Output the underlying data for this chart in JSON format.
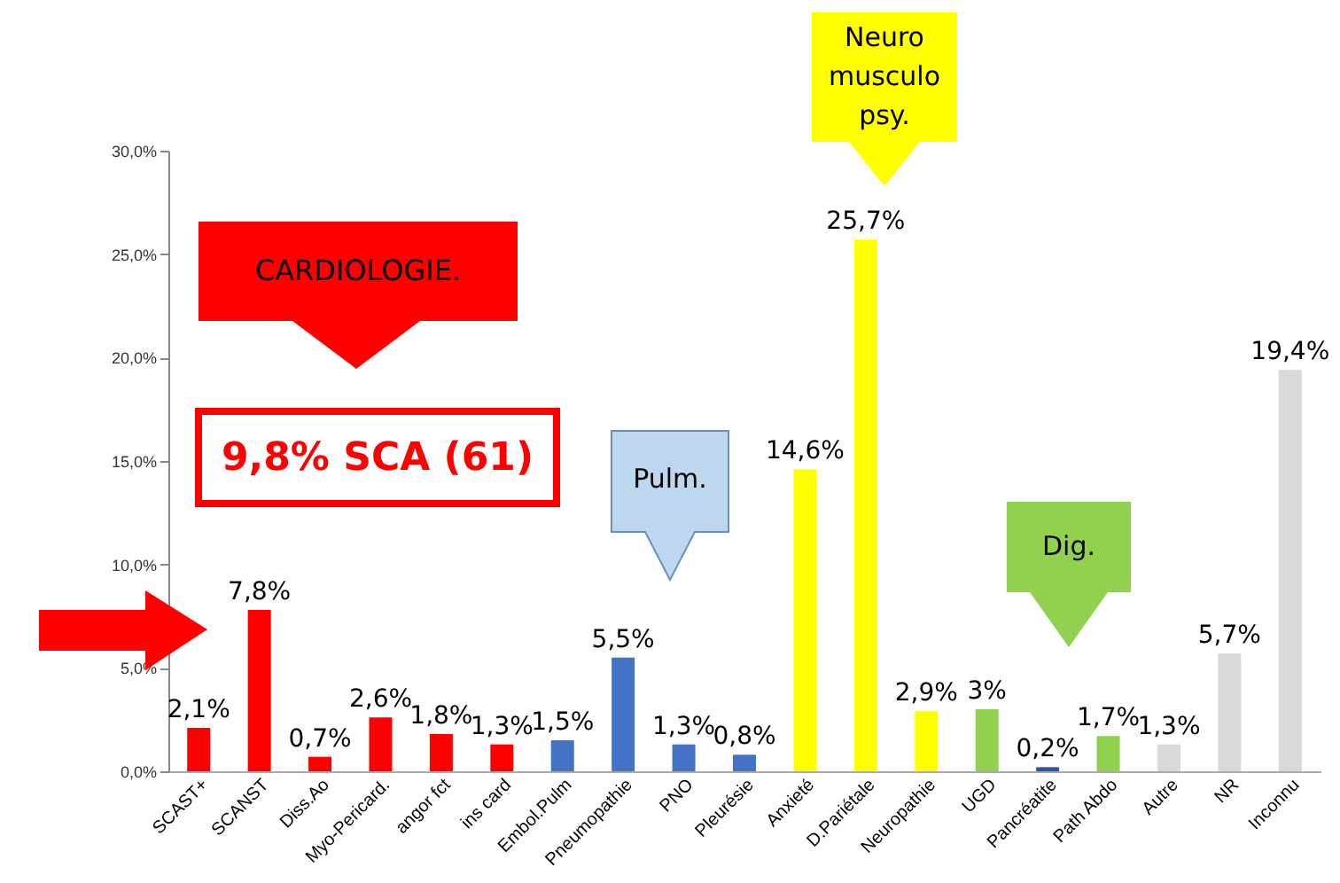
{
  "chart_data": {
    "type": "bar",
    "categories": [
      "SCAST+",
      "SCANST",
      "Diss.Ao",
      "Myo-Pericard.",
      "angor fct",
      "ins card",
      "Embol.Pulm",
      "Pneumopathie",
      "PNO",
      "Pleurésie",
      "Anxieté",
      "D.Pariétale",
      "Neuropathie",
      "UGD",
      "Pancréatite",
      "Path Abdo",
      "Autre",
      "NR",
      "Inconnu"
    ],
    "values": [
      2.1,
      7.8,
      0.7,
      2.6,
      1.8,
      1.3,
      1.5,
      5.5,
      1.3,
      0.8,
      14.6,
      25.7,
      2.9,
      3,
      0.2,
      1.7,
      1.3,
      5.7,
      19.4
    ],
    "colors": [
      "#ff0000",
      "#ff0000",
      "#ff0000",
      "#ff0000",
      "#ff0000",
      "#ff0000",
      "#4472c4",
      "#4472c4",
      "#4472c4",
      "#4472c4",
      "#ffff00",
      "#ffff00",
      "#ffff00",
      "#92d050",
      "#2e54a8",
      "#92d050",
      "#d9d9d9",
      "#d9d9d9",
      "#d9d9d9"
    ],
    "value_labels": [
      "2,1%",
      "7,8%",
      "0,7%",
      "2,6%",
      "1,8%",
      "1,3%",
      "1,5%",
      "5,5%",
      "1,3%",
      "0,8%",
      "14,6%",
      "25,7%",
      "2,9%",
      "3%",
      "0,2%",
      "1,7%",
      "1,3%",
      "5,7%",
      "19,4%"
    ],
    "ylim": [
      0,
      30
    ],
    "yticks": [
      {
        "value": 0,
        "label": "0,0%"
      },
      {
        "value": 5,
        "label": "5,0%"
      },
      {
        "value": 10,
        "label": "10,0%"
      },
      {
        "value": 15,
        "label": "15,0%"
      },
      {
        "value": 20,
        "label": "20,0%"
      },
      {
        "value": 25,
        "label": "25,0%"
      },
      {
        "value": 30,
        "label": "30,0%"
      }
    ],
    "grid": false,
    "annotations": [
      "CARDIOLOGIE.",
      "9,8% SCA (61)",
      "Pulm.",
      "Dig.",
      "Neuro musculo psy."
    ]
  }
}
